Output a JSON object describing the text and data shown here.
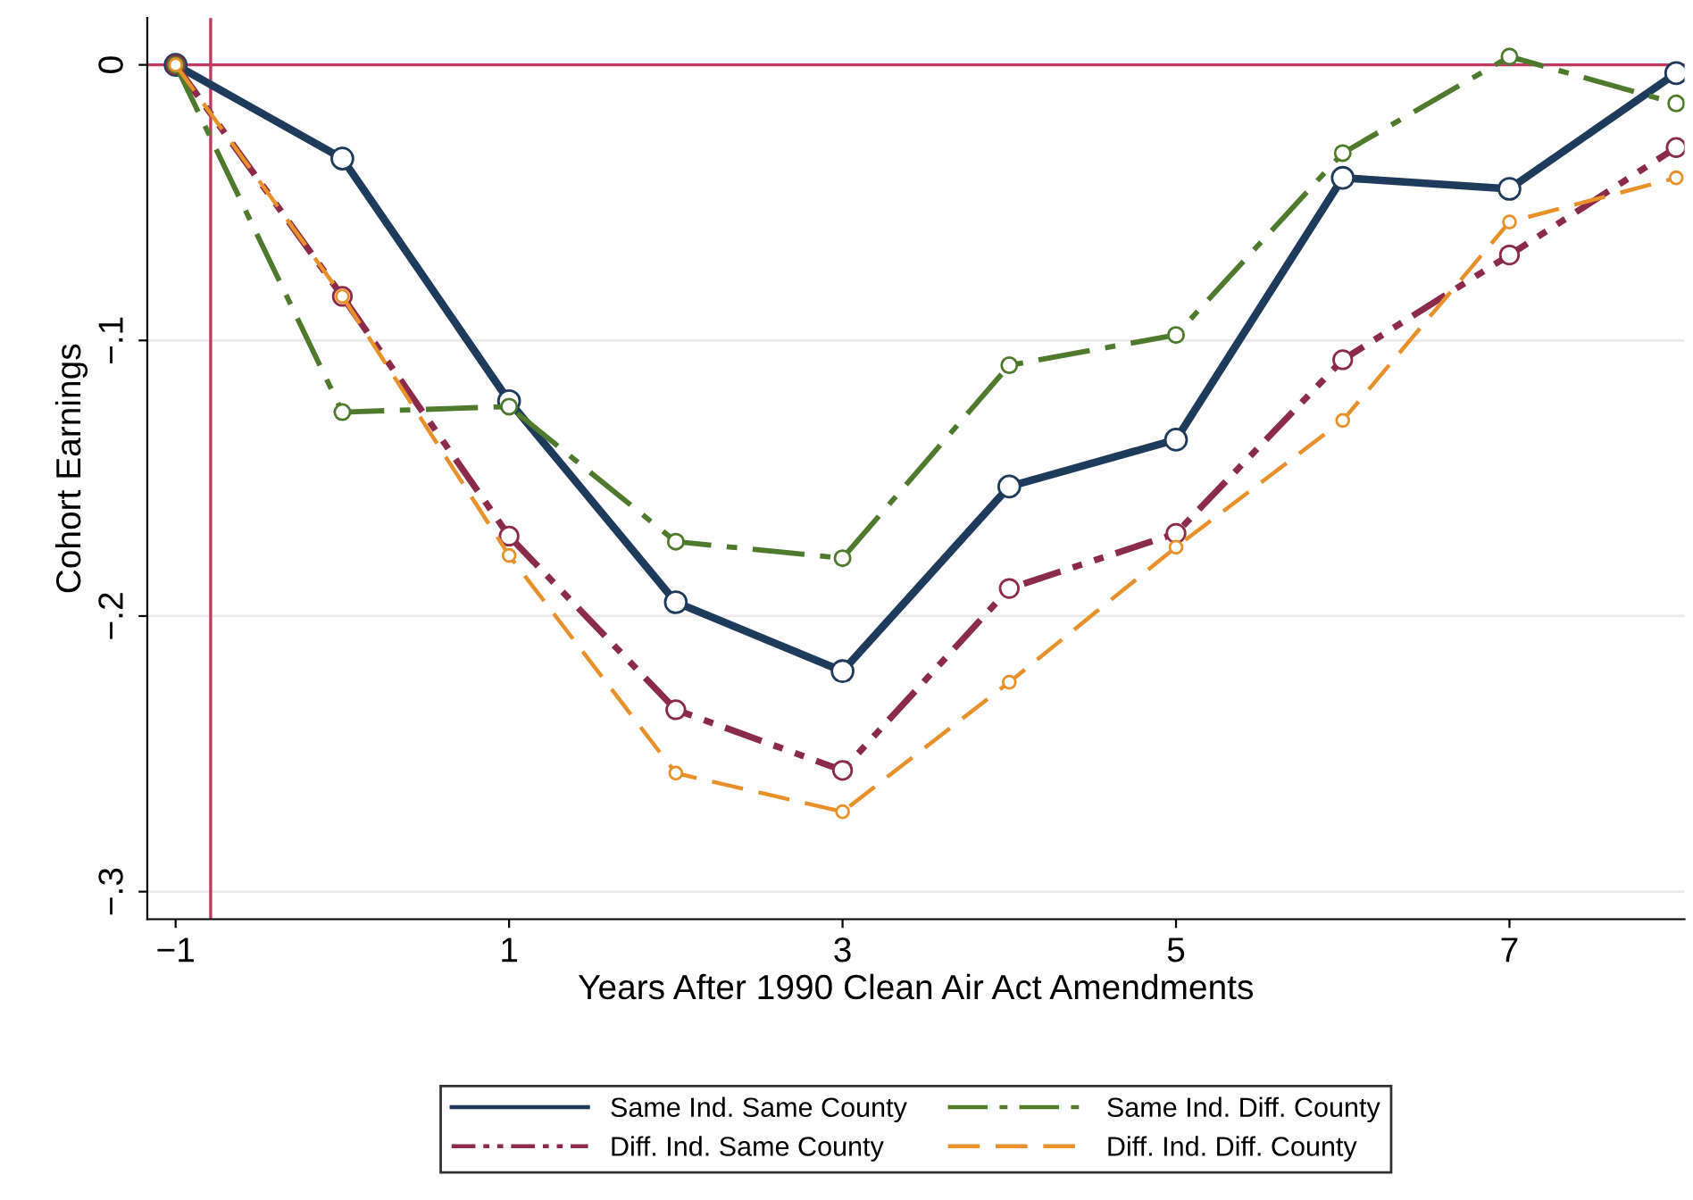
{
  "chart_data": {
    "type": "line",
    "xlabel": "Years After 1990 Clean Air Act Amendments",
    "ylabel": "Cohort Earnings",
    "x": [
      -1,
      0,
      1,
      2,
      3,
      4,
      5,
      6,
      7,
      8
    ],
    "xlim": [
      -1.17,
      8.05
    ],
    "ylim": [
      -0.31,
      0.017
    ],
    "xticks": [
      {
        "value": -1,
        "label": "−1"
      },
      1,
      3,
      5,
      7
    ],
    "yticks": [
      {
        "value": -0.3,
        "label": "−.3"
      },
      {
        "value": -0.2,
        "label": "−.2"
      },
      {
        "value": -0.1,
        "label": "−.1"
      },
      0
    ],
    "grid": "y",
    "legend": "bottom",
    "marker": "circle",
    "series": [
      {
        "name": "Same Ind. Same County",
        "color": "#1f3b5c",
        "line_style": "solid",
        "values": [
          0,
          -0.034,
          -0.122,
          -0.195,
          -0.22,
          -0.153,
          -0.136,
          -0.041,
          -0.045,
          -0.003
        ]
      },
      {
        "name": "Diff. Ind. Same County",
        "color": "#8b2a4a",
        "line_style": "dashdotdot",
        "values": [
          0,
          -0.084,
          -0.171,
          -0.234,
          -0.256,
          -0.19,
          -0.17,
          -0.107,
          -0.069,
          -0.03
        ]
      },
      {
        "name": "Same Ind. Diff. County",
        "color": "#4e7a2e",
        "line_style": "dashdot",
        "values": [
          0,
          -0.126,
          -0.124,
          -0.173,
          -0.179,
          -0.109,
          -0.098,
          -0.032,
          0.003,
          -0.014
        ]
      },
      {
        "name": "Diff. Ind. Diff. County",
        "color": "#e8902a",
        "line_style": "dashed",
        "values": [
          0,
          -0.084,
          -0.178,
          -0.257,
          -0.271,
          -0.224,
          -0.175,
          -0.129,
          -0.057,
          -0.041
        ]
      }
    ],
    "ref_lines": [
      {
        "axis": "y",
        "value": 0,
        "color": "#c0395e"
      },
      {
        "axis": "x",
        "value": -0.79,
        "color": "#c0395e"
      }
    ]
  }
}
